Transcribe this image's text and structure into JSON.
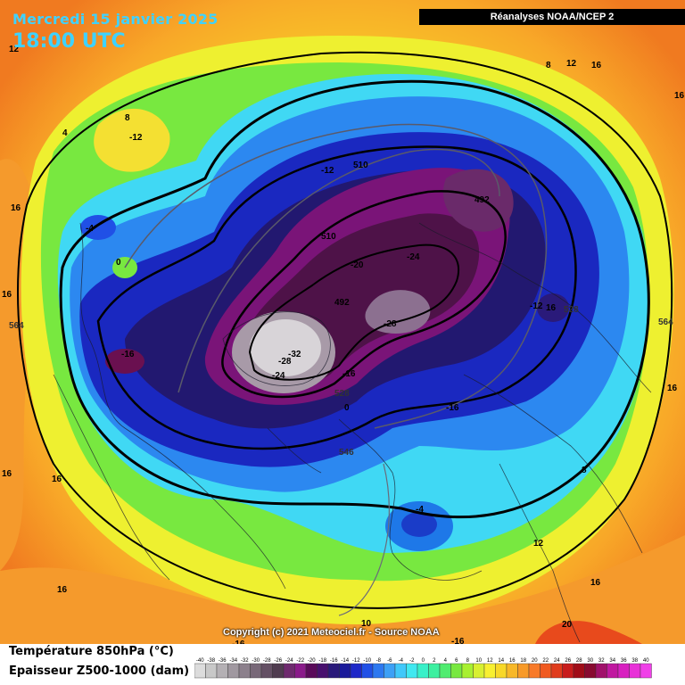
{
  "header": {
    "date": "Mercredi 15 janvier 2025",
    "time": "18:00 UTC",
    "source": "Réanalyses NOAA/NCEP 2"
  },
  "copyright": "Copyright (c) 2021 Meteociel.fr - Source NOAA",
  "legend": {
    "temperature_label": "Température 850hPa (°C)",
    "thickness_label": "Epaisseur Z500-1000 (dam)",
    "scale_values": [
      "-40",
      "-38",
      "-36",
      "-34",
      "-32",
      "-30",
      "-28",
      "-26",
      "-24",
      "-22",
      "-20",
      "-18",
      "-16",
      "-14",
      "-12",
      "-10",
      "-8",
      "-6",
      "-4",
      "-2",
      "0",
      "2",
      "4",
      "6",
      "8",
      "10",
      "12",
      "14",
      "16",
      "18",
      "20",
      "22",
      "24",
      "26",
      "28",
      "30",
      "32",
      "34",
      "36",
      "38",
      "40"
    ],
    "scale_colors": [
      "#dcdcdc",
      "#c8c8c8",
      "#b4b0b4",
      "#a098a0",
      "#8c808c",
      "#786878",
      "#645064",
      "#503c50",
      "#6e2a6e",
      "#8a1a8a",
      "#5a0a5a",
      "#48106e",
      "#2a1a7a",
      "#1a1a9a",
      "#1e28c8",
      "#2050e6",
      "#2c78f0",
      "#3ca0f6",
      "#40c8fa",
      "#40e8f0",
      "#38f0c8",
      "#3cf0a0",
      "#50ec70",
      "#78e840",
      "#a8f030",
      "#d8f030",
      "#f8f030",
      "#f8d828",
      "#f8b828",
      "#f89a28",
      "#f87a28",
      "#f05a20",
      "#e03c1c",
      "#c81c1c",
      "#a00c18",
      "#880a30",
      "#a0106a",
      "#c018a0",
      "#d820c0",
      "#e830d8",
      "#f040e8"
    ]
  },
  "map_labels": [
    {
      "text": "4"
    },
    {
      "text": "8"
    },
    {
      "text": "-12"
    },
    {
      "text": "16"
    },
    {
      "text": "-4"
    },
    {
      "text": "0"
    },
    {
      "text": "-16"
    },
    {
      "text": "564"
    },
    {
      "text": "16"
    },
    {
      "text": "-12"
    },
    {
      "text": "510"
    },
    {
      "text": "510"
    },
    {
      "text": "-20"
    },
    {
      "text": "492"
    },
    {
      "text": "-24"
    },
    {
      "text": "492"
    },
    {
      "text": "-28"
    },
    {
      "text": "-32"
    },
    {
      "text": "-28"
    },
    {
      "text": "-24"
    },
    {
      "text": "-16"
    },
    {
      "text": "528"
    },
    {
      "text": "0"
    },
    {
      "text": "-16"
    },
    {
      "text": "-12"
    },
    {
      "text": "16"
    },
    {
      "text": "528"
    },
    {
      "text": "564"
    },
    {
      "text": "546"
    },
    {
      "text": "-4"
    },
    {
      "text": "8"
    },
    {
      "text": "12"
    },
    {
      "text": "12"
    },
    {
      "text": "16"
    },
    {
      "text": "8"
    },
    {
      "text": "16"
    },
    {
      "text": "16"
    },
    {
      "text": "16"
    },
    {
      "text": "12"
    },
    {
      "text": "16"
    },
    {
      "text": "20"
    },
    {
      "text": "-16"
    },
    {
      "text": "-16"
    },
    {
      "text": "10"
    },
    {
      "text": "16"
    },
    {
      "text": "16"
    }
  ]
}
